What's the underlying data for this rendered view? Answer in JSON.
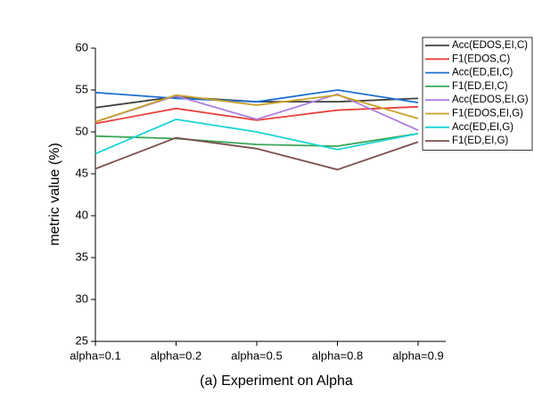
{
  "chart_data": {
    "type": "line",
    "xlabel": "(a) Experiment on Alpha",
    "ylabel": "metric value (%)",
    "categories": [
      "alpha=0.1",
      "alpha=0.2",
      "alpha=0.5",
      "alpha=0.8",
      "alpha=0.9"
    ],
    "ylim": [
      25,
      60
    ],
    "yticks": [
      25,
      30,
      35,
      40,
      45,
      50,
      55,
      60
    ],
    "legend": "upper right",
    "series": [
      {
        "name": "Acc(EDOS,EI,C)",
        "color": "#404040",
        "values": [
          52.9,
          54.2,
          53.6,
          53.6,
          54.0
        ]
      },
      {
        "name": "F1(EDOS,C)",
        "color": "#e8413c",
        "values": [
          51.0,
          52.8,
          51.4,
          52.6,
          53.0
        ]
      },
      {
        "name": "Acc(ED,EI,C)",
        "color": "#1f6fd1",
        "values": [
          54.7,
          54.0,
          53.6,
          55.0,
          53.5
        ]
      },
      {
        "name": "F1(ED,EI,C)",
        "color": "#3aa655",
        "values": [
          49.5,
          49.2,
          48.5,
          48.3,
          49.8
        ]
      },
      {
        "name": "Acc(EDOS,EI,G)",
        "color": "#b07fe0",
        "values": [
          51.2,
          54.3,
          51.5,
          54.5,
          50.2
        ]
      },
      {
        "name": "F1(EDOS,EI,G)",
        "color": "#c9a227",
        "values": [
          51.2,
          54.4,
          53.2,
          54.4,
          51.6
        ]
      },
      {
        "name": "Acc(ED,EI,G)",
        "color": "#19d4d4",
        "values": [
          47.4,
          51.5,
          50.0,
          47.9,
          49.8
        ]
      },
      {
        "name": "F1(ED,EI,G)",
        "color": "#7b4f4f",
        "values": [
          45.6,
          49.3,
          48.0,
          45.5,
          48.8
        ]
      }
    ]
  }
}
